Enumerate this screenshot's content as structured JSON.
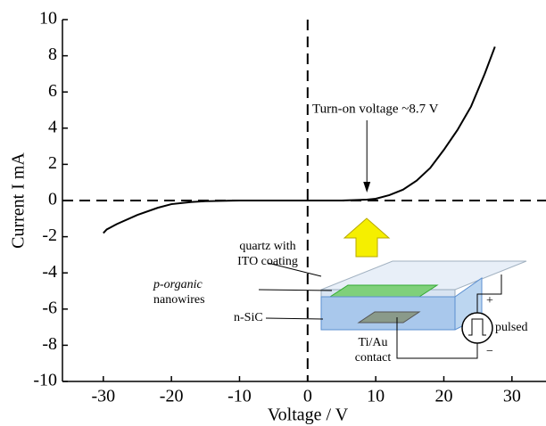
{
  "chart_data": {
    "type": "line",
    "x_label": "Voltage / V",
    "y_label": "Current I mA",
    "x": [
      -30,
      -29.5,
      -28,
      -25,
      -22,
      -20,
      -17,
      -15,
      -10,
      0,
      5,
      8.7,
      10,
      12,
      14,
      16,
      18,
      20,
      22,
      24,
      26,
      27.5
    ],
    "values": [
      -1.8,
      -1.6,
      -1.3,
      -0.8,
      -0.4,
      -0.2,
      -0.08,
      -0.04,
      0,
      0,
      0,
      0.05,
      0.1,
      0.3,
      0.6,
      1.1,
      1.8,
      2.8,
      3.9,
      5.2,
      7,
      8.5
    ],
    "color": "#000000",
    "xlim": [
      -36,
      35
    ],
    "ylim": [
      -10,
      10
    ],
    "xticks": [
      -30,
      -20,
      -10,
      0,
      10,
      20,
      30
    ],
    "yticks": [
      -10,
      -8,
      -6,
      -4,
      -2,
      0,
      2,
      4,
      6,
      8,
      10
    ],
    "annotation": "Turn-on voltage ~8.7 V",
    "annotation_x": 8.7
  },
  "inset": {
    "quartz": [
      "quartz with",
      "ITO coating"
    ],
    "organic": [
      "p-organic",
      "nanowires"
    ],
    "sic": "n-SiC",
    "contact": [
      "Ti/Au",
      "contact"
    ],
    "source": "pulsed",
    "plus": "+",
    "minus": "−"
  }
}
